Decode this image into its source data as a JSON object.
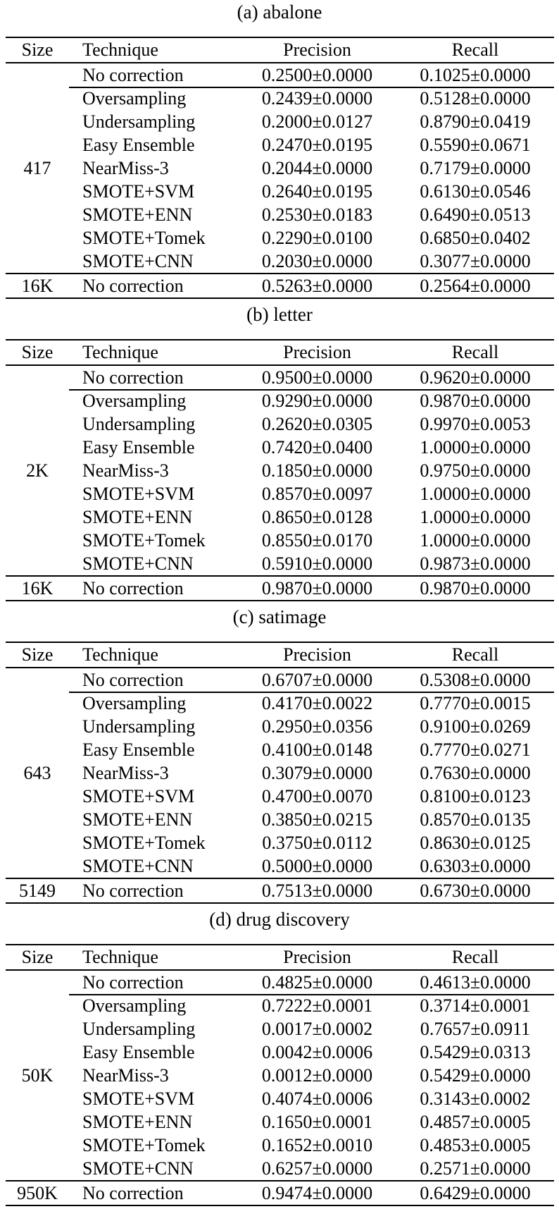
{
  "columns": [
    "Size",
    "Technique",
    "Precision",
    "Recall"
  ],
  "tables": [
    {
      "caption": "(a) abalone",
      "rows": [
        {
          "size": "",
          "technique": "No correction",
          "precision": "0.2500±0.0000",
          "recall": "0.1025±0.0000",
          "cls": "cline"
        },
        {
          "size": "",
          "technique": "Oversampling",
          "precision": "0.2439±0.0000",
          "recall": "0.5128±0.0000",
          "cls": ""
        },
        {
          "size": "",
          "technique": "Undersampling",
          "precision": "0.2000±0.0127",
          "recall": "0.8790±0.0419",
          "cls": ""
        },
        {
          "size": "",
          "technique": "Easy Ensemble",
          "precision": "0.2470±0.0195",
          "recall": "0.5590±0.0671",
          "cls": ""
        },
        {
          "size": "417",
          "technique": "NearMiss-3",
          "precision": "0.2044±0.0000",
          "recall": "0.7179±0.0000",
          "cls": ""
        },
        {
          "size": "",
          "technique": "SMOTE+SVM",
          "precision": "0.2640±0.0195",
          "recall": "0.6130±0.0546",
          "cls": ""
        },
        {
          "size": "",
          "technique": "SMOTE+ENN",
          "precision": "0.2530±0.0183",
          "recall": "0.6490±0.0513",
          "cls": ""
        },
        {
          "size": "",
          "technique": "SMOTE+Tomek",
          "precision": "0.2290±0.0100",
          "recall": "0.6850±0.0402",
          "cls": ""
        },
        {
          "size": "",
          "technique": "SMOTE+CNN",
          "precision": "0.2030±0.0000",
          "recall": "0.3077±0.0000",
          "cls": ""
        },
        {
          "size": "16K",
          "technique": "No correction",
          "precision": "0.5263±0.0000",
          "recall": "0.2564±0.0000",
          "cls": "last"
        }
      ]
    },
    {
      "caption": "(b) letter",
      "rows": [
        {
          "size": "",
          "technique": "No correction",
          "precision": "0.9500±0.0000",
          "recall": "0.9620±0.0000",
          "cls": "cline"
        },
        {
          "size": "",
          "technique": "Oversampling",
          "precision": "0.9290±0.0000",
          "recall": "0.9870±0.0000",
          "cls": ""
        },
        {
          "size": "",
          "technique": "Undersampling",
          "precision": "0.2620±0.0305",
          "recall": "0.9970±0.0053",
          "cls": ""
        },
        {
          "size": "",
          "technique": "Easy Ensemble",
          "precision": "0.7420±0.0400",
          "recall": "1.0000±0.0000",
          "cls": ""
        },
        {
          "size": "2K",
          "technique": "NearMiss-3",
          "precision": "0.1850±0.0000",
          "recall": "0.9750±0.0000",
          "cls": ""
        },
        {
          "size": "",
          "technique": "SMOTE+SVM",
          "precision": "0.8570±0.0097",
          "recall": "1.0000±0.0000",
          "cls": ""
        },
        {
          "size": "",
          "technique": "SMOTE+ENN",
          "precision": "0.8650±0.0128",
          "recall": "1.0000±0.0000",
          "cls": ""
        },
        {
          "size": "",
          "technique": "SMOTE+Tomek",
          "precision": "0.8550±0.0170",
          "recall": "1.0000±0.0000",
          "cls": ""
        },
        {
          "size": "",
          "technique": "SMOTE+CNN",
          "precision": "0.5910±0.0000",
          "recall": "0.9873±0.0000",
          "cls": ""
        },
        {
          "size": "16K",
          "technique": "No correction",
          "precision": "0.9870±0.0000",
          "recall": "0.9870±0.0000",
          "cls": "last"
        }
      ]
    },
    {
      "caption": "(c) satimage",
      "rows": [
        {
          "size": "",
          "technique": "No correction",
          "precision": "0.6707±0.0000",
          "recall": "0.5308±0.0000",
          "cls": "cline"
        },
        {
          "size": "",
          "technique": "Oversampling",
          "precision": "0.4170±0.0022",
          "recall": "0.7770±0.0015",
          "cls": ""
        },
        {
          "size": "",
          "technique": "Undersampling",
          "precision": "0.2950±0.0356",
          "recall": "0.9100±0.0269",
          "cls": ""
        },
        {
          "size": "",
          "technique": "Easy Ensemble",
          "precision": "0.4100±0.0148",
          "recall": "0.7770±0.0271",
          "cls": ""
        },
        {
          "size": "643",
          "technique": "NearMiss-3",
          "precision": "0.3079±0.0000",
          "recall": "0.7630±0.0000",
          "cls": ""
        },
        {
          "size": "",
          "technique": "SMOTE+SVM",
          "precision": "0.4700±0.0070",
          "recall": "0.8100±0.0123",
          "cls": ""
        },
        {
          "size": "",
          "technique": "SMOTE+ENN",
          "precision": "0.3850±0.0215",
          "recall": "0.8570±0.0135",
          "cls": ""
        },
        {
          "size": "",
          "technique": "SMOTE+Tomek",
          "precision": "0.3750±0.0112",
          "recall": "0.8630±0.0125",
          "cls": ""
        },
        {
          "size": "",
          "technique": "SMOTE+CNN",
          "precision": "0.5000±0.0000",
          "recall": "0.6303±0.0000",
          "cls": ""
        },
        {
          "size": "5149",
          "technique": "No correction",
          "precision": "0.7513±0.0000",
          "recall": "0.6730±0.0000",
          "cls": "last"
        }
      ]
    },
    {
      "caption": "(d) drug discovery",
      "rows": [
        {
          "size": "",
          "technique": "No correction",
          "precision": "0.4825±0.0000",
          "recall": "0.4613±0.0000",
          "cls": "cline"
        },
        {
          "size": "",
          "technique": "Oversampling",
          "precision": "0.7222±0.0001",
          "recall": "0.3714±0.0001",
          "cls": ""
        },
        {
          "size": "",
          "technique": "Undersampling",
          "precision": "0.0017±0.0002",
          "recall": "0.7657±0.0911",
          "cls": ""
        },
        {
          "size": "",
          "technique": "Easy Ensemble",
          "precision": "0.0042±0.0006",
          "recall": "0.5429±0.0313",
          "cls": ""
        },
        {
          "size": "50K",
          "technique": "NearMiss-3",
          "precision": "0.0012±0.0000",
          "recall": "0.5429±0.0000",
          "cls": ""
        },
        {
          "size": "",
          "technique": "SMOTE+SVM",
          "precision": "0.4074±0.0006",
          "recall": "0.3143±0.0002",
          "cls": ""
        },
        {
          "size": "",
          "technique": "SMOTE+ENN",
          "precision": "0.1650±0.0001",
          "recall": "0.4857±0.0005",
          "cls": ""
        },
        {
          "size": "",
          "technique": "SMOTE+Tomek",
          "precision": "0.1652±0.0010",
          "recall": "0.4853±0.0005",
          "cls": ""
        },
        {
          "size": "",
          "technique": "SMOTE+CNN",
          "precision": "0.6257±0.0000",
          "recall": "0.2571±0.0000",
          "cls": ""
        },
        {
          "size": "950K",
          "technique": "No correction",
          "precision": "0.9474±0.0000",
          "recall": "0.6429±0.0000",
          "cls": "last"
        }
      ]
    }
  ]
}
